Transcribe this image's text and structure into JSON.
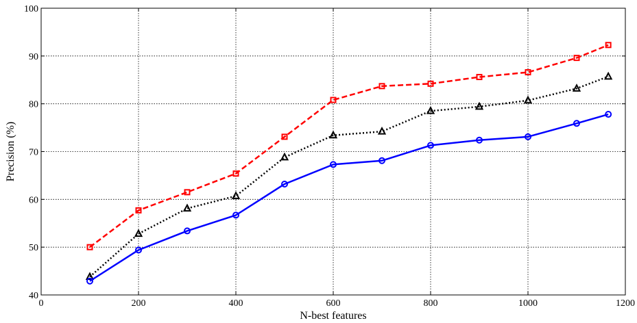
{
  "chart_data": {
    "type": "line",
    "title": "",
    "xlabel": "N-best features",
    "ylabel": "Precision (%)",
    "xlim": [
      0,
      1200
    ],
    "ylim": [
      40,
      100
    ],
    "xticks": [
      0,
      200,
      400,
      600,
      800,
      1000,
      1200
    ],
    "yticks": [
      40,
      50,
      60,
      70,
      80,
      90,
      100
    ],
    "xtick_labels": [
      "0",
      "200",
      "400",
      "600",
      "800",
      "1000",
      "1200"
    ],
    "ytick_labels": [
      "40",
      "50",
      "60",
      "70",
      "80",
      "90",
      "100"
    ],
    "grid": true,
    "legend": false,
    "x": [
      100,
      200,
      300,
      400,
      500,
      600,
      700,
      800,
      900,
      1000,
      1100,
      1165
    ],
    "series": [
      {
        "color": "#ff0000",
        "line_style": "dashed",
        "marker": "square",
        "values": [
          50.0,
          57.7,
          61.5,
          65.4,
          73.1,
          80.8,
          83.7,
          84.2,
          85.6,
          86.6,
          89.6,
          92.3
        ]
      },
      {
        "color": "#000000",
        "line_style": "dotted",
        "marker": "triangle",
        "values": [
          43.8,
          52.8,
          58.1,
          60.7,
          68.8,
          73.4,
          74.2,
          78.5,
          79.4,
          80.7,
          83.2,
          85.7
        ]
      },
      {
        "color": "#0000ff",
        "line_style": "solid",
        "marker": "circle",
        "values": [
          42.9,
          49.4,
          53.4,
          56.7,
          63.2,
          67.3,
          68.1,
          71.3,
          72.4,
          73.1,
          75.9,
          77.8
        ]
      }
    ]
  }
}
